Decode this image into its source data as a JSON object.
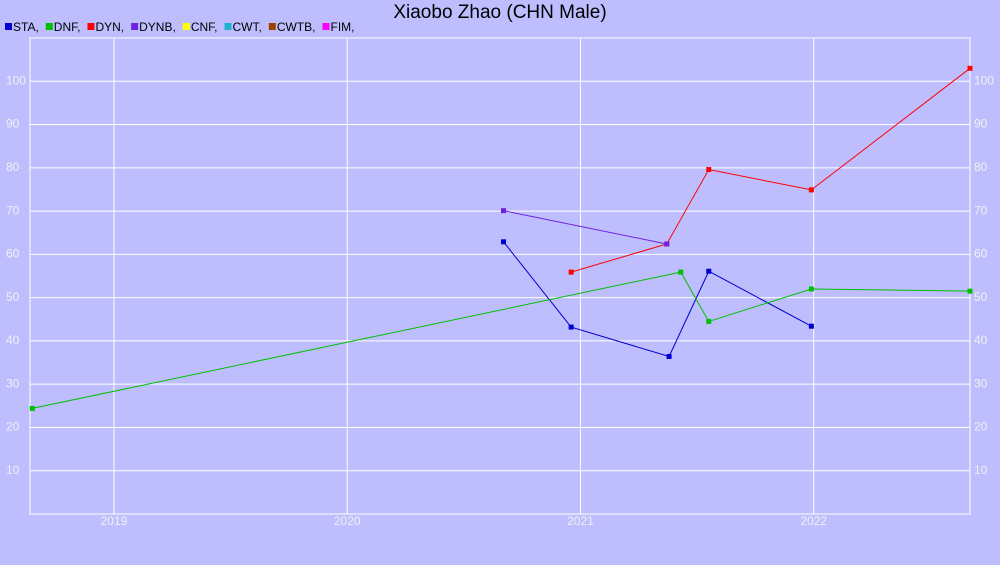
{
  "chart_data": {
    "type": "line",
    "title": "Xiaobo Zhao (CHN Male)",
    "series": [
      {
        "name": "STA,",
        "color": "#0000d0",
        "x": [
          2020.67,
          2020.96,
          2021.38,
          2021.55,
          2021.99
        ],
        "values": [
          62.9,
          43.2,
          36.4,
          56.1,
          43.4
        ]
      },
      {
        "name": "DNF,",
        "color": "#00c000",
        "x": [
          2018.65,
          2021.43,
          2021.55,
          2021.99,
          2022.67
        ],
        "values": [
          24.4,
          55.9,
          44.5,
          52.0,
          51.5
        ]
      },
      {
        "name": "DYN,",
        "color": "#ff0000",
        "x": [
          2020.96,
          2021.37,
          2021.55,
          2021.99,
          2022.67
        ],
        "values": [
          55.9,
          62.4,
          79.6,
          74.9,
          103.0
        ]
      },
      {
        "name": "DYNB,",
        "color": "#7020e0",
        "x": [
          2020.67,
          2021.37
        ],
        "values": [
          70.1,
          62.4
        ]
      },
      {
        "name": "CNF,",
        "color": "#ffff00",
        "x": [],
        "values": []
      },
      {
        "name": "CWT,",
        "color": "#20b0d0",
        "x": [],
        "values": []
      },
      {
        "name": "CWTB,",
        "color": "#a04000",
        "x": [],
        "values": []
      },
      {
        "name": "FIM,",
        "color": "#ff00ff",
        "x": [],
        "values": []
      }
    ],
    "xlim": [
      2018.64,
      2022.67
    ],
    "xticks": [
      2019,
      2020,
      2021,
      2022
    ],
    "ylim": [
      0,
      110
    ],
    "yticks": [
      10,
      20,
      30,
      40,
      50,
      60,
      70,
      80,
      90,
      100
    ],
    "grid": true
  }
}
